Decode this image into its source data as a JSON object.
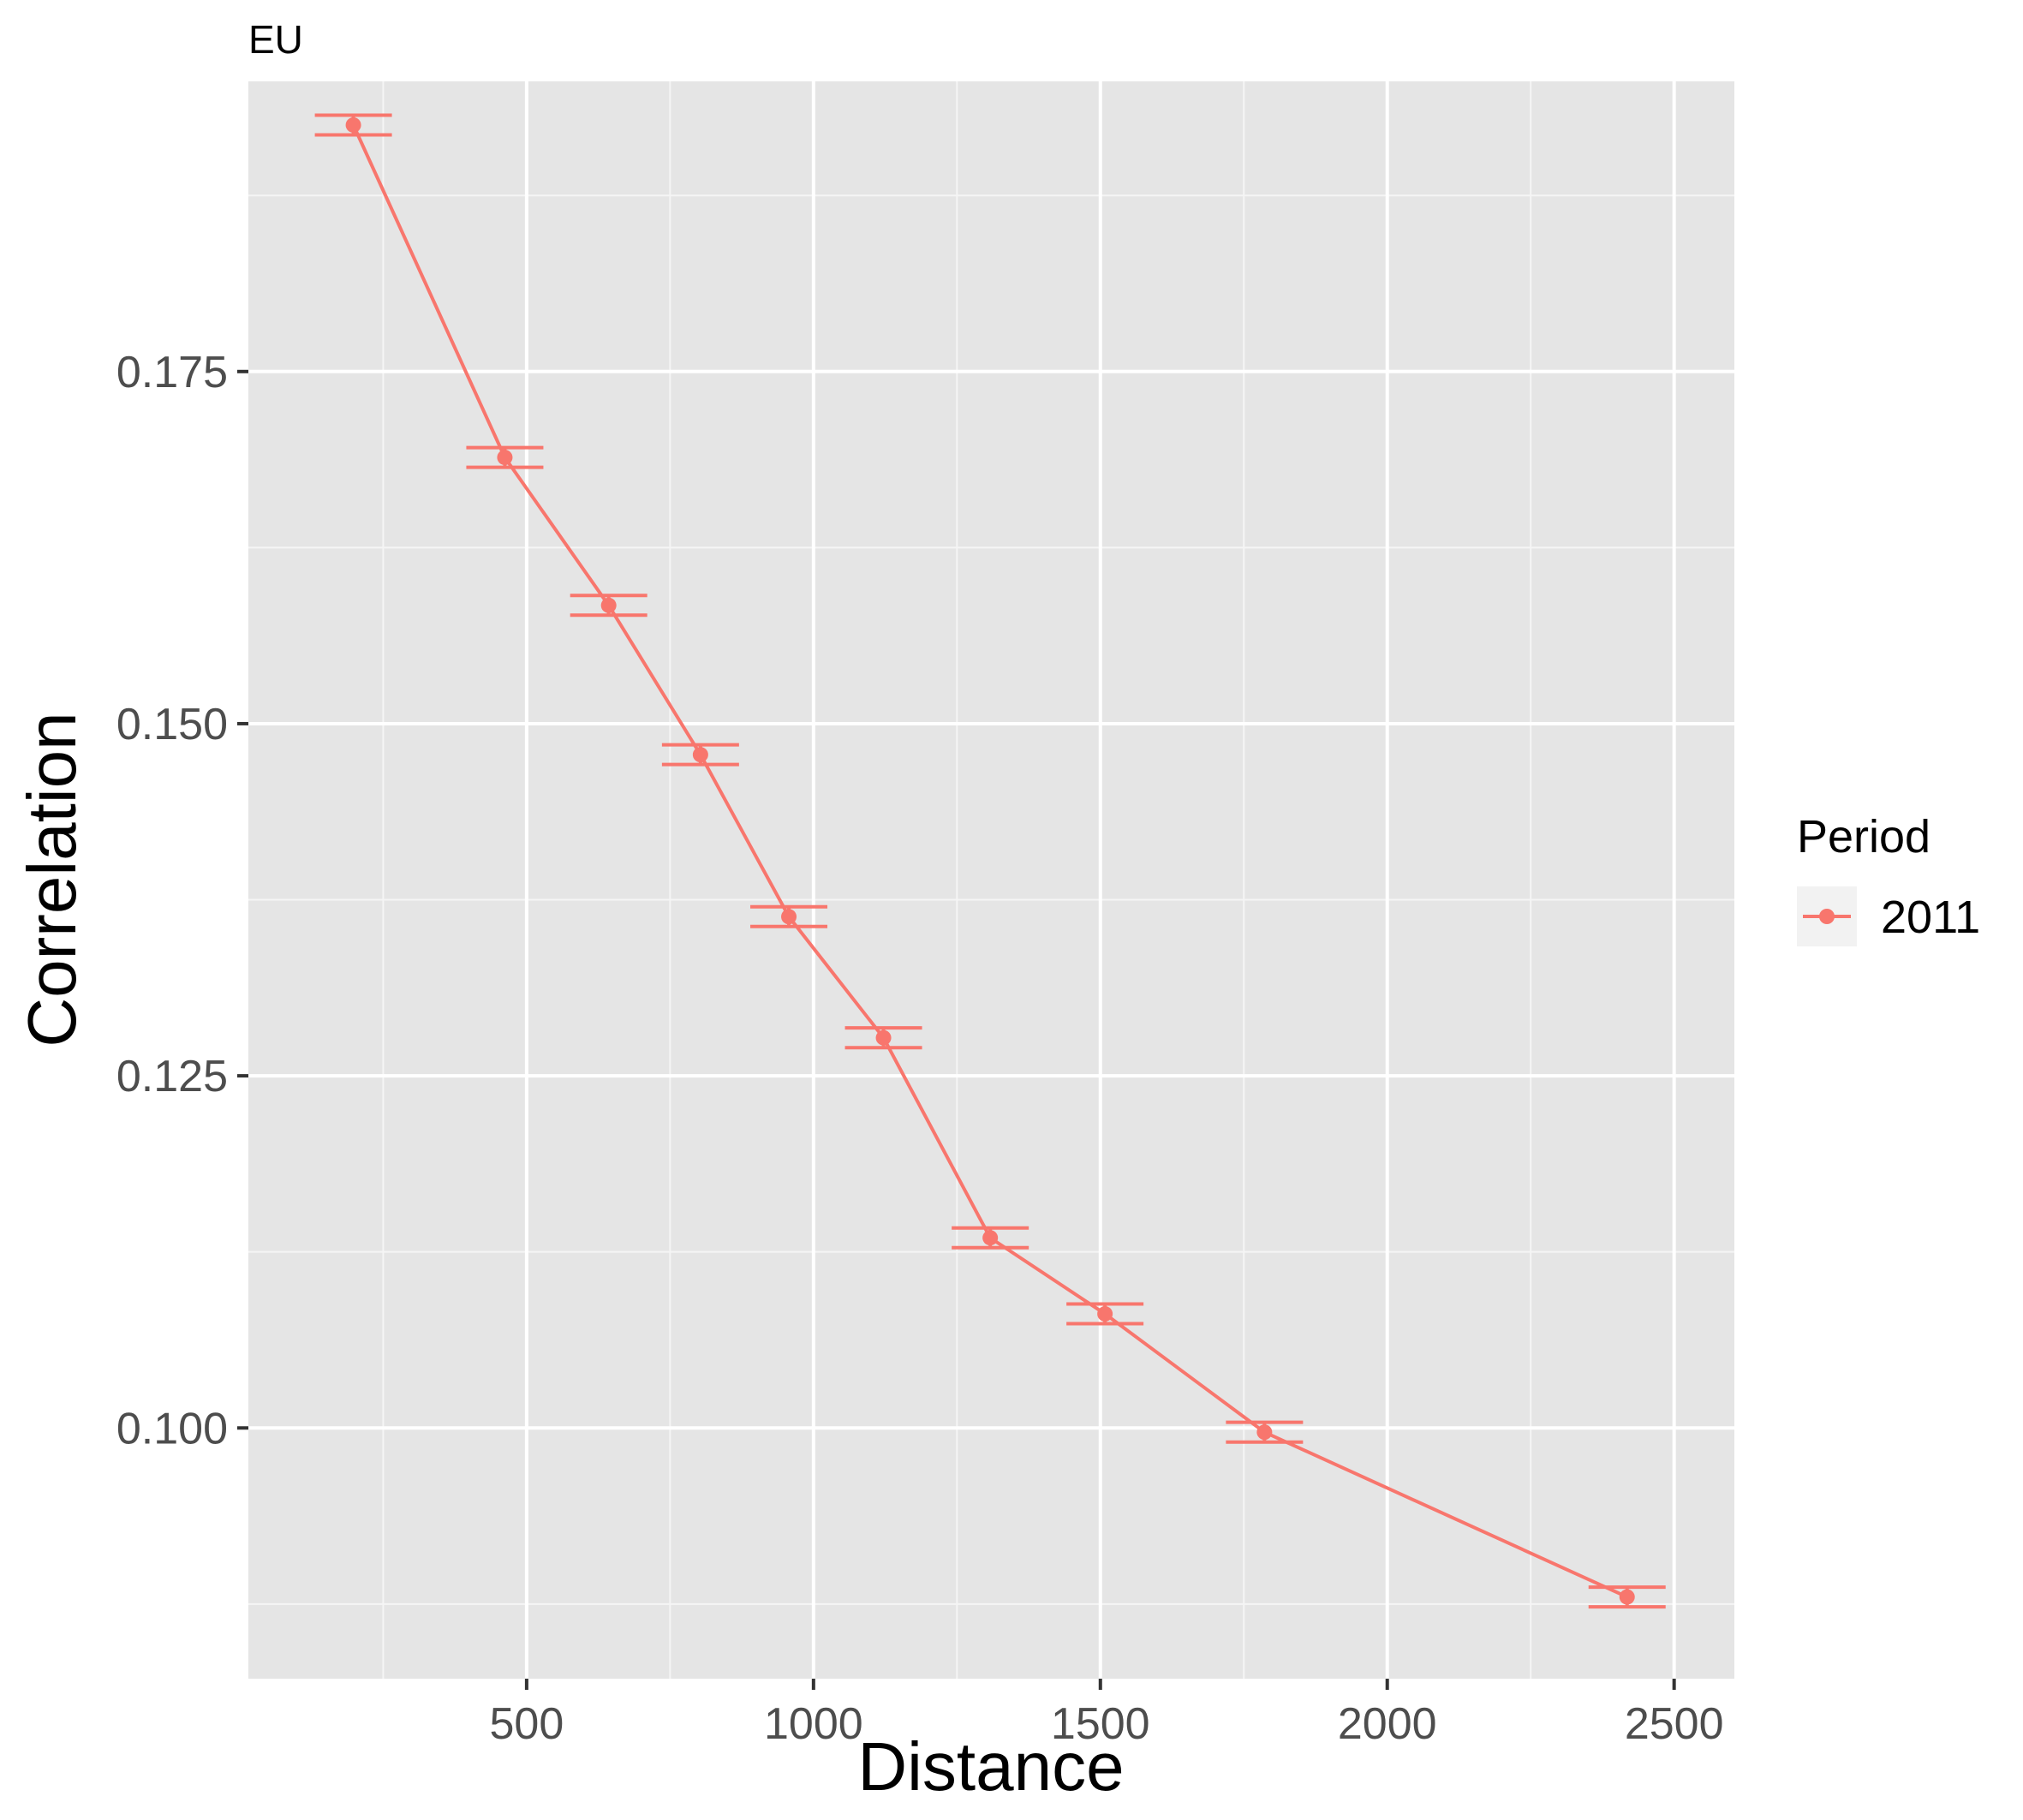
{
  "chart_data": {
    "type": "line",
    "title": "EU",
    "xlabel": "Distance",
    "ylabel": "Correlation",
    "xlim": [
      15,
      2605
    ],
    "ylim": [
      0.0822,
      0.1956
    ],
    "x_ticks": [
      500,
      1000,
      1500,
      2000,
      2500
    ],
    "x_tick_labels": [
      "500",
      "1000",
      "1500",
      "2000",
      "2500"
    ],
    "y_ticks": [
      0.1,
      0.125,
      0.15,
      0.175
    ],
    "y_tick_labels": [
      "0.100",
      "0.125",
      "0.150",
      "0.175"
    ],
    "grid": true,
    "legend": {
      "title": "Period",
      "position": "right"
    },
    "series": [
      {
        "name": "2011",
        "color": "#F8766D",
        "x": [
          198,
          462,
          643,
          803,
          957,
          1122,
          1308,
          1508,
          1786,
          2418
        ],
        "y": [
          0.1925,
          0.1689,
          0.1584,
          0.1478,
          0.1363,
          0.1277,
          0.1135,
          0.1081,
          0.0997,
          0.088
        ],
        "ymin": [
          0.1918,
          0.1682,
          0.1577,
          0.1471,
          0.1356,
          0.127,
          0.1128,
          0.1074,
          0.099,
          0.0873
        ],
        "ymax": [
          0.1932,
          0.1696,
          0.1591,
          0.1485,
          0.137,
          0.1284,
          0.1142,
          0.1088,
          0.1004,
          0.0887
        ]
      }
    ]
  }
}
